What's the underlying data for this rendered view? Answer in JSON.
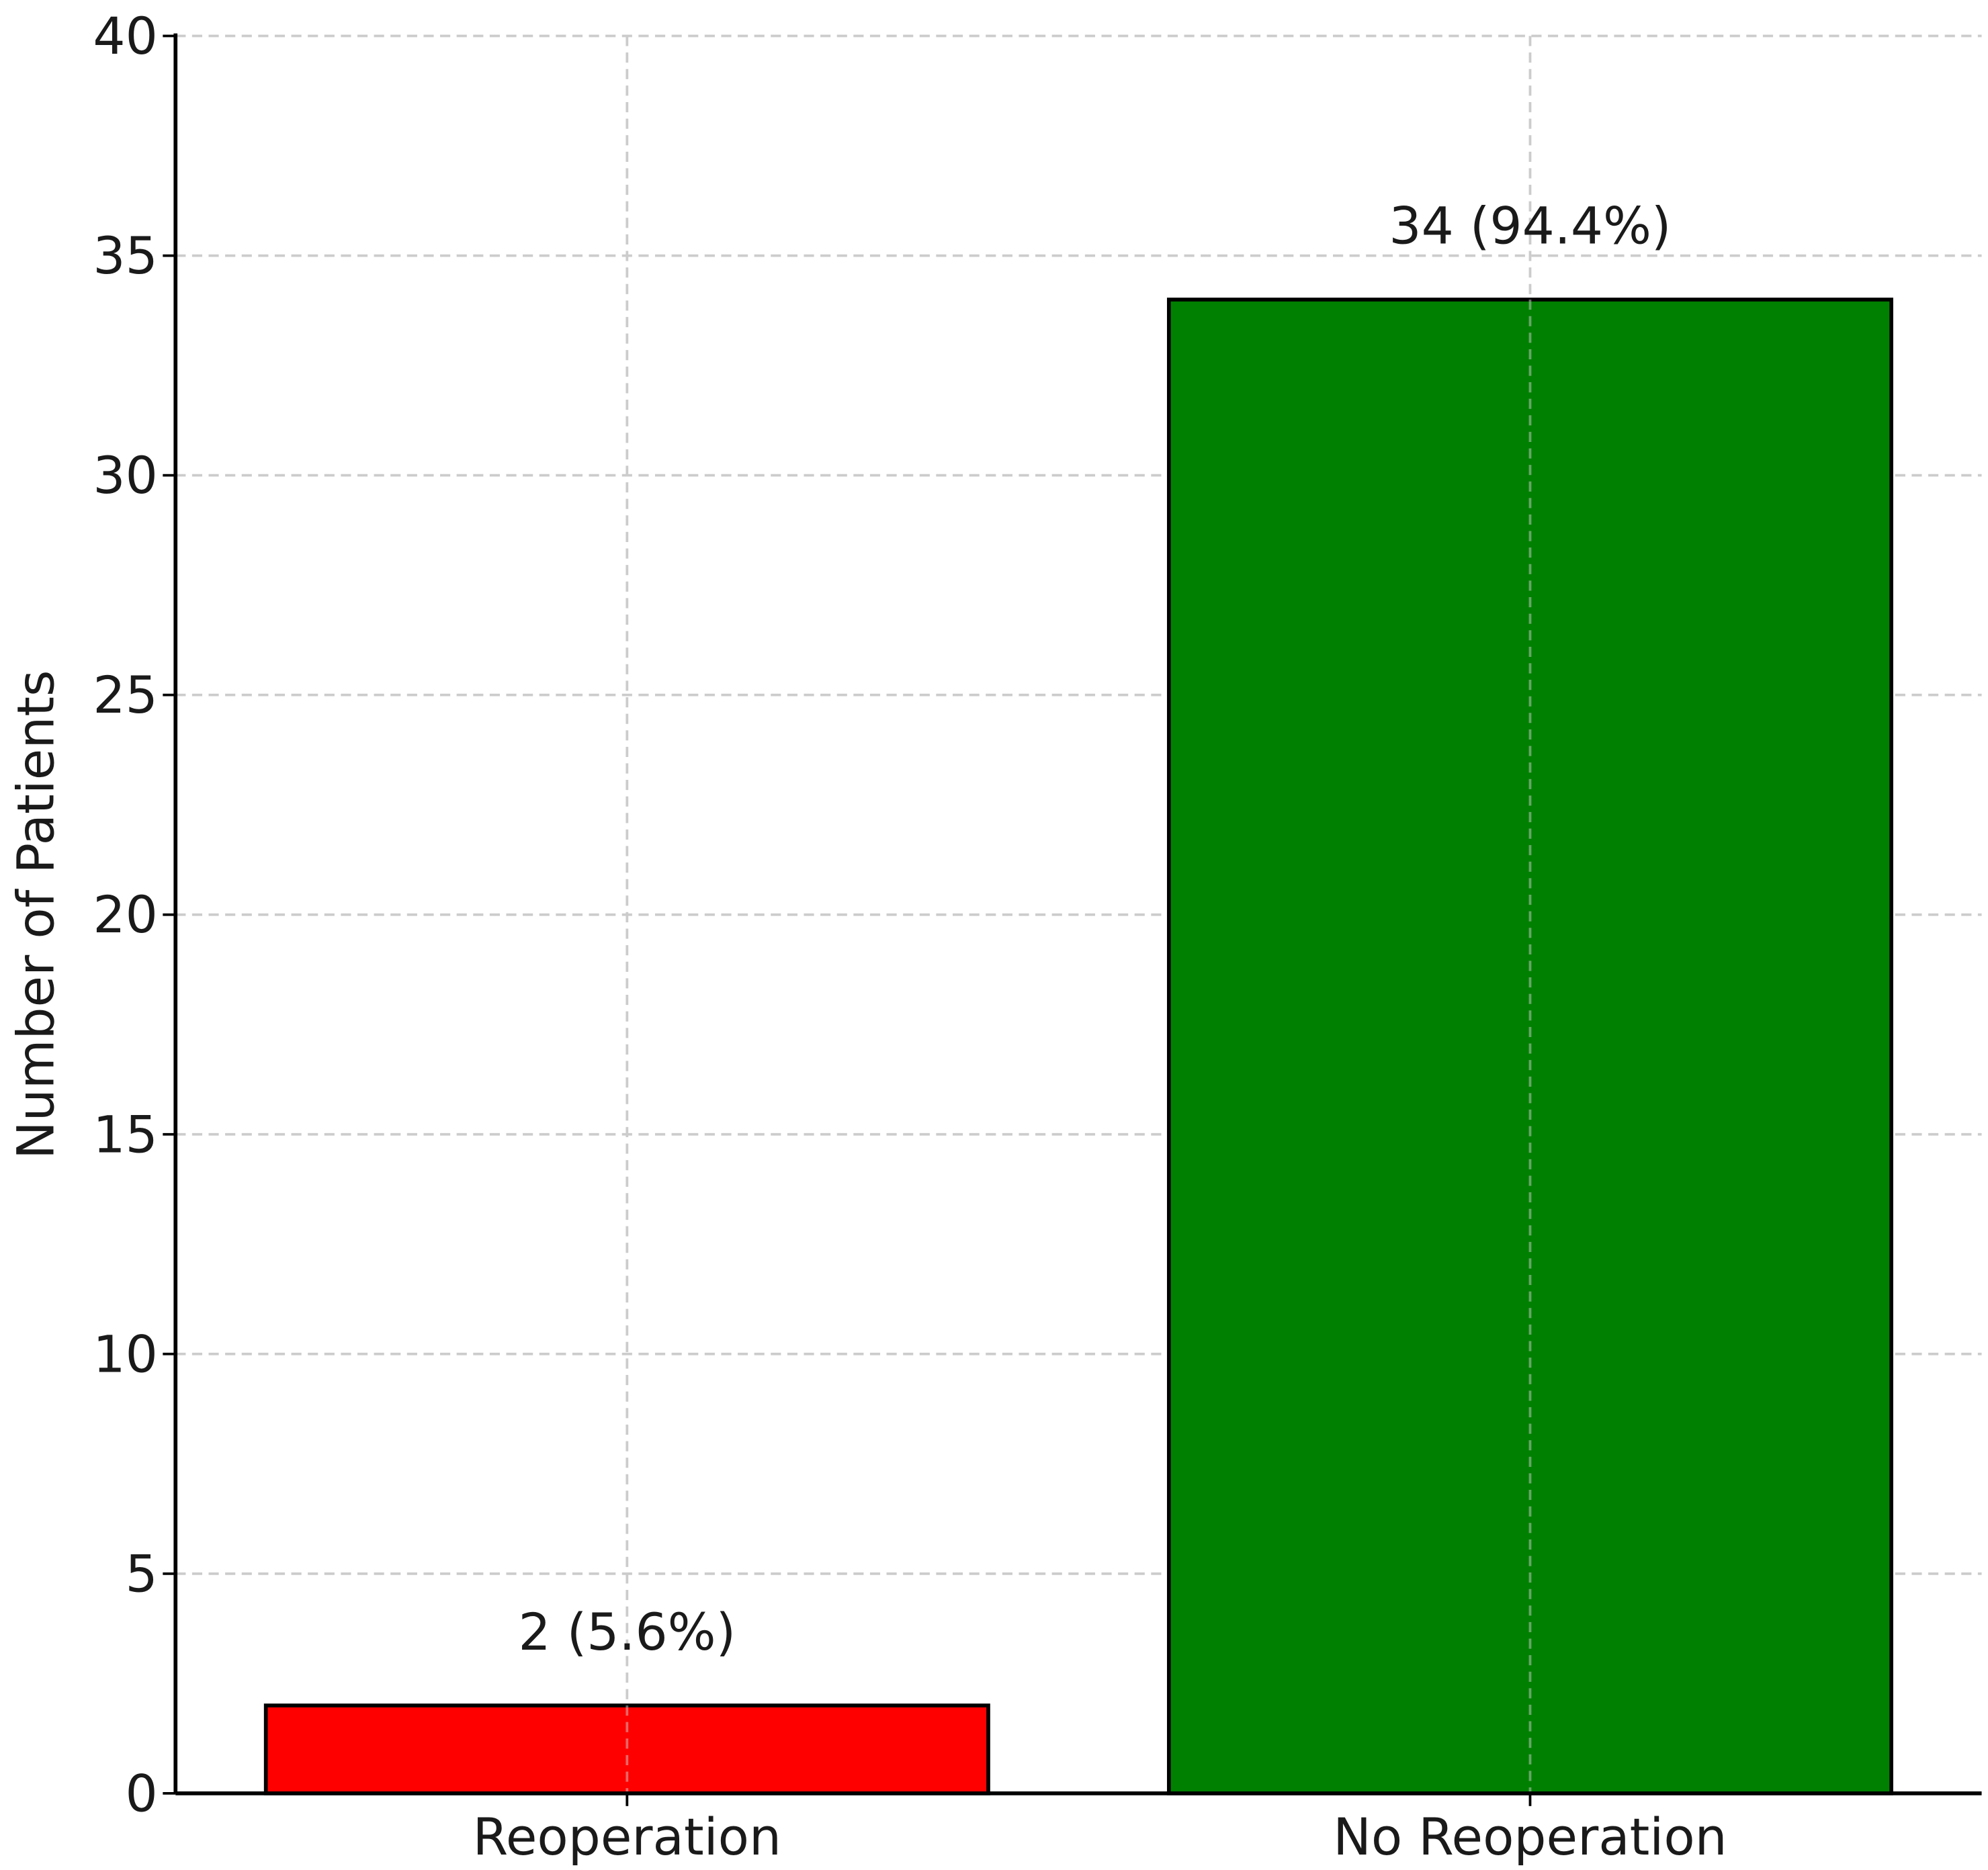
{
  "chart_data": {
    "type": "bar",
    "y_label": "Number of Patients",
    "categories": [
      "Reoperation",
      "No Reoperation"
    ],
    "values": [
      2,
      34
    ],
    "value_labels": [
      "2 (5.6%)",
      "34 (94.4%)"
    ],
    "colors": [
      "#ff0000",
      "#008000"
    ],
    "ylim": [
      0,
      40
    ],
    "yticks": [
      0,
      5,
      10,
      15,
      20,
      25,
      30,
      35,
      40
    ],
    "grid": true
  }
}
